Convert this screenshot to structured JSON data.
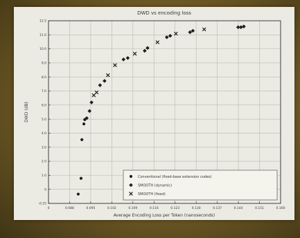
{
  "chart_data": {
    "type": "scatter",
    "title": "DWD vs encoding loss",
    "xlabel": "Average Encoding Loss per Token (nanoseconds)",
    "ylabel": "DWD (dB)",
    "xlim": [
      0.078,
      0.16
    ],
    "ylim": [
      -0.25,
      12.5
    ],
    "x_ticks": [
      "0",
      "0.088",
      "0.095",
      "0.102",
      "0.109",
      "0.116",
      "0.123",
      "0.130",
      "0.137",
      "0.144",
      "0.151",
      "0.160"
    ],
    "y_ticks": [
      "-0.25",
      "0",
      "1.0",
      "2.0",
      "3.0",
      "4.0",
      "5.0",
      "6.0",
      "7.0",
      "8.0",
      "9.0",
      "10.0",
      "11.0",
      "12.5"
    ],
    "grid": true,
    "legend_position": "bottom-right",
    "series": [
      {
        "name": "Conventional (fixed-base extension codes)",
        "marker": "dot",
        "points": [
          [
            0.0885,
            0.4
          ],
          [
            0.0895,
            1.5
          ],
          [
            0.0898,
            4.2
          ],
          [
            0.0905,
            5.3
          ],
          [
            0.0908,
            5.6
          ]
        ]
      },
      {
        "name": "SMOOTH (dynamic)",
        "marker": "diamond",
        "points": [
          [
            0.0915,
            5.7
          ],
          [
            0.0925,
            6.2
          ],
          [
            0.0932,
            6.8
          ],
          [
            0.0962,
            8.0
          ],
          [
            0.0978,
            8.3
          ],
          [
            0.1045,
            9.8
          ],
          [
            0.106,
            9.9
          ],
          [
            0.112,
            10.4
          ],
          [
            0.113,
            10.6
          ],
          [
            0.1198,
            11.35
          ],
          [
            0.121,
            11.45
          ],
          [
            0.128,
            11.7
          ],
          [
            0.129,
            11.8
          ],
          [
            0.145,
            12.05
          ],
          [
            0.146,
            12.05
          ],
          [
            0.147,
            12.1
          ]
        ]
      },
      {
        "name": "SMOOTH (fixed)",
        "marker": "cross",
        "points": [
          [
            0.094,
            7.3
          ],
          [
            0.095,
            7.5
          ],
          [
            0.099,
            8.7
          ],
          [
            0.1015,
            9.4
          ],
          [
            0.1085,
            10.2
          ],
          [
            0.1165,
            11.0
          ],
          [
            0.123,
            11.6
          ],
          [
            0.133,
            11.9
          ]
        ]
      }
    ],
    "colors": {
      "marker": "#1f1f1f",
      "grid": "#b9b8ae",
      "frame": "#2b2b2b",
      "background": "#ecebe3"
    }
  }
}
